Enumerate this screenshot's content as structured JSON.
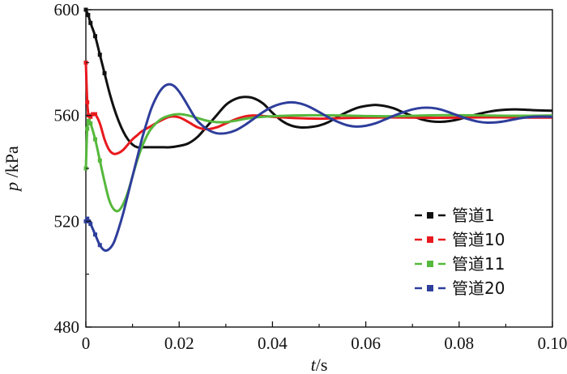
{
  "chart_data": {
    "type": "line",
    "ylabel": {
      "italic": "p",
      "rest": " /kPa"
    },
    "xlabel": {
      "italic": "t",
      "rest": "/s"
    },
    "xlim": [
      0,
      0.1
    ],
    "ylim": [
      480,
      600
    ],
    "xticks": [
      "0",
      "0.02",
      "0.04",
      "0.06",
      "0.08",
      "0.10"
    ],
    "xtick_values": [
      0,
      0.02,
      0.04,
      0.06,
      0.08,
      0.1
    ],
    "yticks": [
      "480",
      "520",
      "560",
      "600"
    ],
    "ytick_values": [
      480,
      520,
      560,
      600
    ],
    "grid": false,
    "legend_position": "lower-right",
    "series": [
      {
        "name": "管道1",
        "color": "#111111",
        "x": [
          0,
          0.0005,
          0.001,
          0.002,
          0.003,
          0.004,
          0.005,
          0.006,
          0.007,
          0.008,
          0.009,
          0.01,
          0.011,
          0.012,
          0.014,
          0.016,
          0.018,
          0.02,
          0.022,
          0.024,
          0.026,
          0.028,
          0.03,
          0.032,
          0.034,
          0.036,
          0.038,
          0.04,
          0.042,
          0.044,
          0.046,
          0.048,
          0.05,
          0.052,
          0.054,
          0.056,
          0.058,
          0.06,
          0.062,
          0.064,
          0.066,
          0.068,
          0.07,
          0.072,
          0.074,
          0.076,
          0.078,
          0.08,
          0.082,
          0.084,
          0.086,
          0.088,
          0.09,
          0.092,
          0.094,
          0.096,
          0.098,
          0.1
        ],
        "values": [
          600,
          598,
          595,
          590,
          583,
          576,
          569,
          563,
          558,
          554,
          551,
          549,
          548,
          548,
          548,
          548,
          548,
          548.5,
          549.5,
          552,
          556,
          560,
          564,
          566.2,
          567,
          566.5,
          564.5,
          561,
          558,
          556.2,
          555.5,
          555.6,
          556.2,
          557.5,
          559.5,
          561.3,
          562.8,
          563.6,
          564,
          563.6,
          562.7,
          561.2,
          559.8,
          558.5,
          557.8,
          557.6,
          557.9,
          558.6,
          559.6,
          560.5,
          561.3,
          561.9,
          562.2,
          562.3,
          562.2,
          562,
          561.9,
          561.8
        ]
      },
      {
        "name": "管道10",
        "color": "#e8191e",
        "x": [
          0,
          0.0003,
          0.0006,
          0.001,
          0.0015,
          0.002,
          0.003,
          0.004,
          0.005,
          0.006,
          0.007,
          0.008,
          0.009,
          0.01,
          0.011,
          0.012,
          0.014,
          0.016,
          0.018,
          0.02,
          0.022,
          0.024,
          0.026,
          0.028,
          0.03,
          0.032,
          0.034,
          0.036,
          0.038,
          0.04,
          0.045,
          0.05,
          0.055,
          0.06,
          0.065,
          0.07,
          0.075,
          0.08,
          0.085,
          0.09,
          0.095,
          0.1
        ],
        "values": [
          580,
          565,
          560,
          559.5,
          560.5,
          560.5,
          557,
          551,
          547,
          545.5,
          545.8,
          547,
          549,
          551,
          552.5,
          554,
          556,
          558,
          559.5,
          559.3,
          557.5,
          555.5,
          554.8,
          555.5,
          557,
          558.5,
          559.6,
          560,
          559.8,
          559.5,
          559,
          558.8,
          559,
          559.2,
          559.3,
          559.2,
          559.1,
          559.2,
          559.3,
          559.3,
          559.2,
          559.2
        ]
      },
      {
        "name": "管道11",
        "color": "#56b83c",
        "x": [
          0,
          0.0003,
          0.0006,
          0.001,
          0.002,
          0.003,
          0.004,
          0.005,
          0.006,
          0.007,
          0.008,
          0.009,
          0.01,
          0.011,
          0.012,
          0.013,
          0.014,
          0.016,
          0.018,
          0.02,
          0.022,
          0.024,
          0.026,
          0.028,
          0.03,
          0.032,
          0.034,
          0.036,
          0.038,
          0.04,
          0.045,
          0.05,
          0.055,
          0.06,
          0.065,
          0.07,
          0.075,
          0.08,
          0.085,
          0.09,
          0.095,
          0.1
        ],
        "values": [
          540,
          555,
          558,
          557,
          551,
          543,
          535,
          528,
          524.5,
          524,
          526.5,
          531,
          537,
          543,
          548,
          552,
          555,
          558.5,
          560,
          560.5,
          560,
          559,
          558,
          557.5,
          557.5,
          558,
          558.7,
          559.2,
          559.5,
          559.7,
          560,
          560.1,
          560,
          559.8,
          559.7,
          559.9,
          560.1,
          560.1,
          560,
          559.9,
          559.9,
          560
        ]
      },
      {
        "name": "管道20",
        "color": "#2e3e9b",
        "x": [
          0,
          0.0003,
          0.0006,
          0.001,
          0.002,
          0.003,
          0.004,
          0.005,
          0.006,
          0.007,
          0.008,
          0.009,
          0.01,
          0.011,
          0.012,
          0.013,
          0.014,
          0.015,
          0.016,
          0.017,
          0.018,
          0.019,
          0.02,
          0.021,
          0.022,
          0.023,
          0.024,
          0.026,
          0.028,
          0.03,
          0.032,
          0.034,
          0.036,
          0.038,
          0.04,
          0.042,
          0.044,
          0.046,
          0.048,
          0.05,
          0.052,
          0.054,
          0.056,
          0.058,
          0.06,
          0.062,
          0.064,
          0.066,
          0.068,
          0.07,
          0.072,
          0.074,
          0.076,
          0.078,
          0.08,
          0.082,
          0.084,
          0.086,
          0.088,
          0.09,
          0.092,
          0.094,
          0.096,
          0.098,
          0.1
        ],
        "values": [
          520,
          521,
          520,
          519,
          515,
          511,
          509,
          509.5,
          512,
          517,
          523,
          530,
          537,
          544,
          551,
          557,
          562.5,
          566.5,
          569.5,
          571.3,
          571.8,
          571,
          569,
          566.3,
          563.3,
          560.3,
          557.8,
          554.8,
          553.3,
          553.3,
          554.3,
          556.3,
          558.8,
          561.3,
          563.3,
          564.5,
          565,
          564.5,
          563.2,
          561.3,
          559.3,
          557.6,
          556.3,
          555.8,
          556.1,
          557,
          558.4,
          559.9,
          561.2,
          562.3,
          562.9,
          562.9,
          562.3,
          561.1,
          559.8,
          558.6,
          557.7,
          557.3,
          557.4,
          557.9,
          558.6,
          559.2,
          559.5,
          559.6,
          559.5
        ]
      }
    ]
  }
}
